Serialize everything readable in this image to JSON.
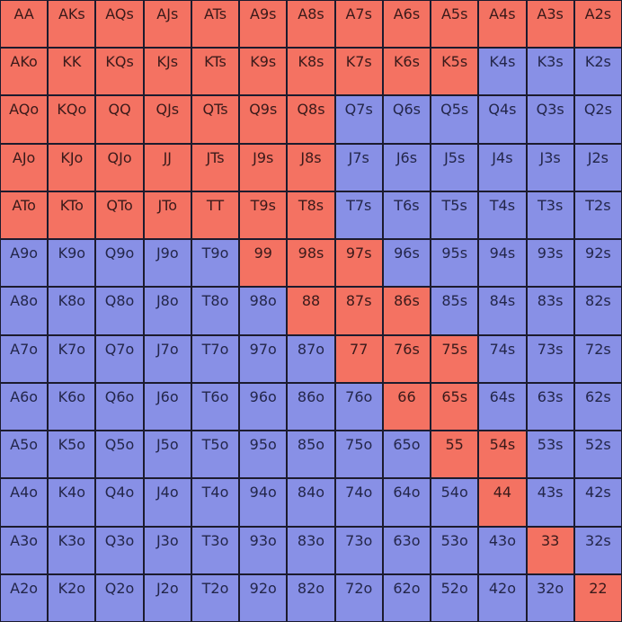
{
  "colors": {
    "raise": "#f47262",
    "fold": "#8890e6"
  },
  "ranks": [
    "A",
    "K",
    "Q",
    "J",
    "T",
    "9",
    "8",
    "7",
    "6",
    "5",
    "4",
    "3",
    "2"
  ],
  "rows": [
    {
      "cells": [
        {
          "label": "AA",
          "action": "raise"
        },
        {
          "label": "AKs",
          "action": "raise"
        },
        {
          "label": "AQs",
          "action": "raise"
        },
        {
          "label": "AJs",
          "action": "raise"
        },
        {
          "label": "ATs",
          "action": "raise"
        },
        {
          "label": "A9s",
          "action": "raise"
        },
        {
          "label": "A8s",
          "action": "raise"
        },
        {
          "label": "A7s",
          "action": "raise"
        },
        {
          "label": "A6s",
          "action": "raise"
        },
        {
          "label": "A5s",
          "action": "raise"
        },
        {
          "label": "A4s",
          "action": "raise"
        },
        {
          "label": "A3s",
          "action": "raise"
        },
        {
          "label": "A2s",
          "action": "raise"
        }
      ]
    },
    {
      "cells": [
        {
          "label": "AKo",
          "action": "raise"
        },
        {
          "label": "KK",
          "action": "raise"
        },
        {
          "label": "KQs",
          "action": "raise"
        },
        {
          "label": "KJs",
          "action": "raise"
        },
        {
          "label": "KTs",
          "action": "raise"
        },
        {
          "label": "K9s",
          "action": "raise"
        },
        {
          "label": "K8s",
          "action": "raise"
        },
        {
          "label": "K7s",
          "action": "raise"
        },
        {
          "label": "K6s",
          "action": "raise"
        },
        {
          "label": "K5s",
          "action": "raise"
        },
        {
          "label": "K4s",
          "action": "fold"
        },
        {
          "label": "K3s",
          "action": "fold"
        },
        {
          "label": "K2s",
          "action": "fold"
        }
      ]
    },
    {
      "cells": [
        {
          "label": "AQo",
          "action": "raise"
        },
        {
          "label": "KQo",
          "action": "raise"
        },
        {
          "label": "QQ",
          "action": "raise"
        },
        {
          "label": "QJs",
          "action": "raise"
        },
        {
          "label": "QTs",
          "action": "raise"
        },
        {
          "label": "Q9s",
          "action": "raise"
        },
        {
          "label": "Q8s",
          "action": "raise"
        },
        {
          "label": "Q7s",
          "action": "fold"
        },
        {
          "label": "Q6s",
          "action": "fold"
        },
        {
          "label": "Q5s",
          "action": "fold"
        },
        {
          "label": "Q4s",
          "action": "fold"
        },
        {
          "label": "Q3s",
          "action": "fold"
        },
        {
          "label": "Q2s",
          "action": "fold"
        }
      ]
    },
    {
      "cells": [
        {
          "label": "AJo",
          "action": "raise"
        },
        {
          "label": "KJo",
          "action": "raise"
        },
        {
          "label": "QJo",
          "action": "raise"
        },
        {
          "label": "JJ",
          "action": "raise"
        },
        {
          "label": "JTs",
          "action": "raise"
        },
        {
          "label": "J9s",
          "action": "raise"
        },
        {
          "label": "J8s",
          "action": "raise"
        },
        {
          "label": "J7s",
          "action": "fold"
        },
        {
          "label": "J6s",
          "action": "fold"
        },
        {
          "label": "J5s",
          "action": "fold"
        },
        {
          "label": "J4s",
          "action": "fold"
        },
        {
          "label": "J3s",
          "action": "fold"
        },
        {
          "label": "J2s",
          "action": "fold"
        }
      ]
    },
    {
      "cells": [
        {
          "label": "ATo",
          "action": "raise"
        },
        {
          "label": "KTo",
          "action": "raise"
        },
        {
          "label": "QTo",
          "action": "raise"
        },
        {
          "label": "JTo",
          "action": "raise"
        },
        {
          "label": "TT",
          "action": "raise"
        },
        {
          "label": "T9s",
          "action": "raise"
        },
        {
          "label": "T8s",
          "action": "raise"
        },
        {
          "label": "T7s",
          "action": "fold"
        },
        {
          "label": "T6s",
          "action": "fold"
        },
        {
          "label": "T5s",
          "action": "fold"
        },
        {
          "label": "T4s",
          "action": "fold"
        },
        {
          "label": "T3s",
          "action": "fold"
        },
        {
          "label": "T2s",
          "action": "fold"
        }
      ]
    },
    {
      "cells": [
        {
          "label": "A9o",
          "action": "fold"
        },
        {
          "label": "K9o",
          "action": "fold"
        },
        {
          "label": "Q9o",
          "action": "fold"
        },
        {
          "label": "J9o",
          "action": "fold"
        },
        {
          "label": "T9o",
          "action": "fold"
        },
        {
          "label": "99",
          "action": "raise"
        },
        {
          "label": "98s",
          "action": "raise"
        },
        {
          "label": "97s",
          "action": "raise"
        },
        {
          "label": "96s",
          "action": "fold"
        },
        {
          "label": "95s",
          "action": "fold"
        },
        {
          "label": "94s",
          "action": "fold"
        },
        {
          "label": "93s",
          "action": "fold"
        },
        {
          "label": "92s",
          "action": "fold"
        }
      ]
    },
    {
      "cells": [
        {
          "label": "A8o",
          "action": "fold"
        },
        {
          "label": "K8o",
          "action": "fold"
        },
        {
          "label": "Q8o",
          "action": "fold"
        },
        {
          "label": "J8o",
          "action": "fold"
        },
        {
          "label": "T8o",
          "action": "fold"
        },
        {
          "label": "98o",
          "action": "fold"
        },
        {
          "label": "88",
          "action": "raise"
        },
        {
          "label": "87s",
          "action": "raise"
        },
        {
          "label": "86s",
          "action": "raise"
        },
        {
          "label": "85s",
          "action": "fold"
        },
        {
          "label": "84s",
          "action": "fold"
        },
        {
          "label": "83s",
          "action": "fold"
        },
        {
          "label": "82s",
          "action": "fold"
        }
      ]
    },
    {
      "cells": [
        {
          "label": "A7o",
          "action": "fold"
        },
        {
          "label": "K7o",
          "action": "fold"
        },
        {
          "label": "Q7o",
          "action": "fold"
        },
        {
          "label": "J7o",
          "action": "fold"
        },
        {
          "label": "T7o",
          "action": "fold"
        },
        {
          "label": "97o",
          "action": "fold"
        },
        {
          "label": "87o",
          "action": "fold"
        },
        {
          "label": "77",
          "action": "raise"
        },
        {
          "label": "76s",
          "action": "raise"
        },
        {
          "label": "75s",
          "action": "raise"
        },
        {
          "label": "74s",
          "action": "fold"
        },
        {
          "label": "73s",
          "action": "fold"
        },
        {
          "label": "72s",
          "action": "fold"
        }
      ]
    },
    {
      "cells": [
        {
          "label": "A6o",
          "action": "fold"
        },
        {
          "label": "K6o",
          "action": "fold"
        },
        {
          "label": "Q6o",
          "action": "fold"
        },
        {
          "label": "J6o",
          "action": "fold"
        },
        {
          "label": "T6o",
          "action": "fold"
        },
        {
          "label": "96o",
          "action": "fold"
        },
        {
          "label": "86o",
          "action": "fold"
        },
        {
          "label": "76o",
          "action": "fold"
        },
        {
          "label": "66",
          "action": "raise"
        },
        {
          "label": "65s",
          "action": "raise"
        },
        {
          "label": "64s",
          "action": "fold"
        },
        {
          "label": "63s",
          "action": "fold"
        },
        {
          "label": "62s",
          "action": "fold"
        }
      ]
    },
    {
      "cells": [
        {
          "label": "A5o",
          "action": "fold"
        },
        {
          "label": "K5o",
          "action": "fold"
        },
        {
          "label": "Q5o",
          "action": "fold"
        },
        {
          "label": "J5o",
          "action": "fold"
        },
        {
          "label": "T5o",
          "action": "fold"
        },
        {
          "label": "95o",
          "action": "fold"
        },
        {
          "label": "85o",
          "action": "fold"
        },
        {
          "label": "75o",
          "action": "fold"
        },
        {
          "label": "65o",
          "action": "fold"
        },
        {
          "label": "55",
          "action": "raise"
        },
        {
          "label": "54s",
          "action": "raise"
        },
        {
          "label": "53s",
          "action": "fold"
        },
        {
          "label": "52s",
          "action": "fold"
        }
      ]
    },
    {
      "cells": [
        {
          "label": "A4o",
          "action": "fold"
        },
        {
          "label": "K4o",
          "action": "fold"
        },
        {
          "label": "Q4o",
          "action": "fold"
        },
        {
          "label": "J4o",
          "action": "fold"
        },
        {
          "label": "T4o",
          "action": "fold"
        },
        {
          "label": "94o",
          "action": "fold"
        },
        {
          "label": "84o",
          "action": "fold"
        },
        {
          "label": "74o",
          "action": "fold"
        },
        {
          "label": "64o",
          "action": "fold"
        },
        {
          "label": "54o",
          "action": "fold"
        },
        {
          "label": "44",
          "action": "raise"
        },
        {
          "label": "43s",
          "action": "fold"
        },
        {
          "label": "42s",
          "action": "fold"
        }
      ]
    },
    {
      "cells": [
        {
          "label": "A3o",
          "action": "fold"
        },
        {
          "label": "K3o",
          "action": "fold"
        },
        {
          "label": "Q3o",
          "action": "fold"
        },
        {
          "label": "J3o",
          "action": "fold"
        },
        {
          "label": "T3o",
          "action": "fold"
        },
        {
          "label": "93o",
          "action": "fold"
        },
        {
          "label": "83o",
          "action": "fold"
        },
        {
          "label": "73o",
          "action": "fold"
        },
        {
          "label": "63o",
          "action": "fold"
        },
        {
          "label": "53o",
          "action": "fold"
        },
        {
          "label": "43o",
          "action": "fold"
        },
        {
          "label": "33",
          "action": "raise"
        },
        {
          "label": "32s",
          "action": "fold"
        }
      ]
    },
    {
      "cells": [
        {
          "label": "A2o",
          "action": "fold"
        },
        {
          "label": "K2o",
          "action": "fold"
        },
        {
          "label": "Q2o",
          "action": "fold"
        },
        {
          "label": "J2o",
          "action": "fold"
        },
        {
          "label": "T2o",
          "action": "fold"
        },
        {
          "label": "92o",
          "action": "fold"
        },
        {
          "label": "82o",
          "action": "fold"
        },
        {
          "label": "72o",
          "action": "fold"
        },
        {
          "label": "62o",
          "action": "fold"
        },
        {
          "label": "52o",
          "action": "fold"
        },
        {
          "label": "42o",
          "action": "fold"
        },
        {
          "label": "32o",
          "action": "fold"
        },
        {
          "label": "22",
          "action": "raise"
        }
      ]
    }
  ]
}
